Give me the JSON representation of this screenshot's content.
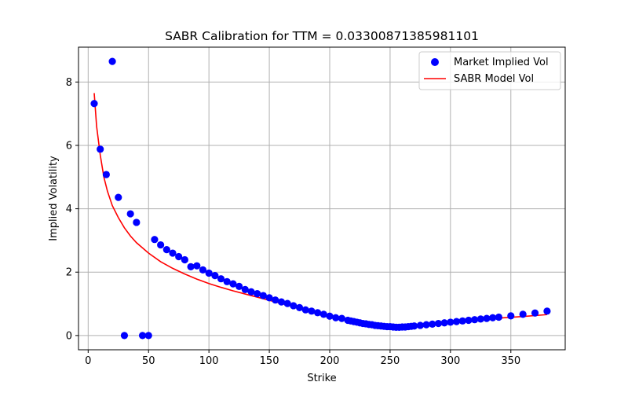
{
  "chart_data": {
    "type": "scatter",
    "title": "SABR Calibration for TTM = 0.03300871385981101",
    "xlabel": "Strike",
    "ylabel": "Implied Volatility",
    "xlim": [
      -8,
      395
    ],
    "ylim": [
      -0.45,
      9.1
    ],
    "xticks": [
      0,
      50,
      100,
      150,
      200,
      250,
      300,
      350
    ],
    "yticks": [
      0,
      2,
      4,
      6,
      8
    ],
    "grid": true,
    "legend_position": "top-right",
    "colors": {
      "market": "#0000ff",
      "model": "#ff0000"
    },
    "series": [
      {
        "name": "Market Implied Vol",
        "kind": "scatter",
        "points": [
          [
            5,
            7.32
          ],
          [
            10,
            5.88
          ],
          [
            15,
            5.08
          ],
          [
            20,
            8.65
          ],
          [
            25,
            4.36
          ],
          [
            30,
            0.0
          ],
          [
            35,
            3.84
          ],
          [
            40,
            3.57
          ],
          [
            45,
            0.0
          ],
          [
            50,
            0.0
          ],
          [
            55,
            3.03
          ],
          [
            60,
            2.86
          ],
          [
            65,
            2.71
          ],
          [
            70,
            2.6
          ],
          [
            75,
            2.49
          ],
          [
            80,
            2.39
          ],
          [
            85,
            2.17
          ],
          [
            90,
            2.2
          ],
          [
            95,
            2.07
          ],
          [
            100,
            1.97
          ],
          [
            105,
            1.89
          ],
          [
            110,
            1.79
          ],
          [
            115,
            1.7
          ],
          [
            120,
            1.63
          ],
          [
            125,
            1.55
          ],
          [
            130,
            1.45
          ],
          [
            135,
            1.38
          ],
          [
            140,
            1.32
          ],
          [
            145,
            1.26
          ],
          [
            150,
            1.19
          ],
          [
            155,
            1.12
          ],
          [
            160,
            1.06
          ],
          [
            165,
            1.01
          ],
          [
            170,
            0.94
          ],
          [
            175,
            0.88
          ],
          [
            180,
            0.81
          ],
          [
            185,
            0.77
          ],
          [
            190,
            0.72
          ],
          [
            195,
            0.67
          ],
          [
            200,
            0.61
          ],
          [
            205,
            0.56
          ],
          [
            210,
            0.54
          ],
          [
            215,
            0.48
          ],
          [
            217.5,
            0.46
          ],
          [
            220,
            0.44
          ],
          [
            222.5,
            0.42
          ],
          [
            225,
            0.4
          ],
          [
            227.5,
            0.38
          ],
          [
            230,
            0.37
          ],
          [
            232.5,
            0.35
          ],
          [
            235,
            0.34
          ],
          [
            237.5,
            0.32
          ],
          [
            240,
            0.31
          ],
          [
            242.5,
            0.3
          ],
          [
            245,
            0.29
          ],
          [
            247.5,
            0.28
          ],
          [
            250,
            0.28
          ],
          [
            252.5,
            0.27
          ],
          [
            255,
            0.26
          ],
          [
            257.5,
            0.26
          ],
          [
            260,
            0.27
          ],
          [
            262.5,
            0.27
          ],
          [
            265,
            0.28
          ],
          [
            267.5,
            0.29
          ],
          [
            270,
            0.3
          ],
          [
            275,
            0.32
          ],
          [
            280,
            0.34
          ],
          [
            285,
            0.36
          ],
          [
            290,
            0.38
          ],
          [
            295,
            0.4
          ],
          [
            300,
            0.42
          ],
          [
            305,
            0.44
          ],
          [
            310,
            0.46
          ],
          [
            315,
            0.48
          ],
          [
            320,
            0.5
          ],
          [
            325,
            0.52
          ],
          [
            330,
            0.54
          ],
          [
            335,
            0.56
          ],
          [
            340,
            0.58
          ],
          [
            350,
            0.62
          ],
          [
            360,
            0.67
          ],
          [
            370,
            0.71
          ],
          [
            380,
            0.77
          ]
        ]
      },
      {
        "name": "SABR Model Vol",
        "kind": "line",
        "points": [
          [
            5,
            7.65
          ],
          [
            7,
            6.6
          ],
          [
            10,
            5.7
          ],
          [
            13,
            5.0
          ],
          [
            16,
            4.55
          ],
          [
            20,
            4.1
          ],
          [
            25,
            3.72
          ],
          [
            30,
            3.4
          ],
          [
            35,
            3.14
          ],
          [
            40,
            2.93
          ],
          [
            50,
            2.6
          ],
          [
            60,
            2.33
          ],
          [
            70,
            2.12
          ],
          [
            80,
            1.94
          ],
          [
            90,
            1.78
          ],
          [
            100,
            1.64
          ],
          [
            110,
            1.52
          ],
          [
            120,
            1.41
          ],
          [
            130,
            1.31
          ],
          [
            140,
            1.21
          ],
          [
            150,
            1.11
          ],
          [
            160,
            1.01
          ],
          [
            170,
            0.91
          ],
          [
            180,
            0.8
          ],
          [
            190,
            0.7
          ],
          [
            200,
            0.6
          ],
          [
            210,
            0.5
          ],
          [
            220,
            0.41
          ],
          [
            230,
            0.35
          ],
          [
            240,
            0.31
          ],
          [
            250,
            0.29
          ],
          [
            260,
            0.3
          ],
          [
            270,
            0.33
          ],
          [
            280,
            0.37
          ],
          [
            290,
            0.41
          ],
          [
            300,
            0.44
          ],
          [
            320,
            0.5
          ],
          [
            340,
            0.55
          ],
          [
            360,
            0.6
          ],
          [
            380,
            0.66
          ]
        ]
      }
    ]
  }
}
